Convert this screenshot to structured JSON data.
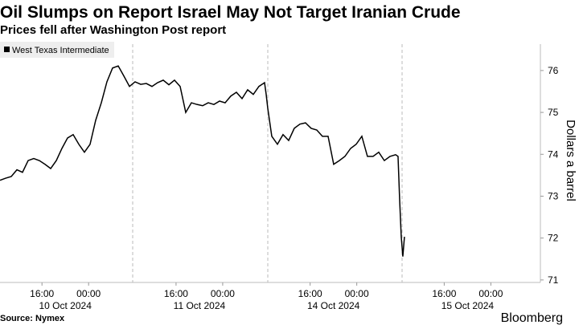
{
  "chart_data": {
    "type": "line",
    "title": "Oil Slumps on Report Israel May Not Target Iranian Crude",
    "subtitle": "Prices fell after Washington Post report",
    "y_label": "Dollars a barrel",
    "source": "Source: Nymex",
    "brand": "Bloomberg",
    "legend_position": "upper left",
    "date_labels": [
      "10 Oct 2024",
      "11 Oct 2024",
      "14 Oct 2024",
      "15 Oct 2024"
    ],
    "xlim": [
      0,
      92.7
    ],
    "xticks": [
      {
        "value": 7.2,
        "label": "16:00"
      },
      {
        "value": 15.2,
        "label": "00:00"
      },
      {
        "value": 30.2,
        "label": "16:00"
      },
      {
        "value": 38.2,
        "label": "00:00"
      },
      {
        "value": 53.2,
        "label": "16:00"
      },
      {
        "value": 61.2,
        "label": "00:00"
      },
      {
        "value": 76.2,
        "label": "16:00"
      },
      {
        "value": 84.2,
        "label": "00:00"
      }
    ],
    "ylim": [
      70.94,
      76.63
    ],
    "yticks": [
      71,
      72,
      73,
      74,
      75,
      76
    ],
    "x": [
      0,
      0.97,
      1.93,
      2.9,
      3.86,
      4.83,
      5.79,
      6.76,
      7.72,
      8.69,
      9.66,
      10.62,
      11.59,
      12.55,
      13.52,
      14.48,
      15.45,
      16.41,
      17.38,
      18.34,
      19.31,
      20.28,
      21.24,
      22.21,
      23.17,
      24.14,
      25.1,
      26.07,
      27.03,
      28,
      28.97,
      29.93,
      30.9,
      31.86,
      32.83,
      33.79,
      34.76,
      35.72,
      36.69,
      37.66,
      38.62,
      39.59,
      40.55,
      41.52,
      42.48,
      43.45,
      44.41,
      45.38,
      45.66,
      45.93,
      46.62,
      47.59,
      48.55,
      49.52,
      50.48,
      51.45,
      52.41,
      53.38,
      54.34,
      55.31,
      56.28,
      57.24,
      58.21,
      59.17,
      60.14,
      61.1,
      62.07,
      63.03,
      64,
      64.97,
      65.93,
      66.9,
      67.86,
      68.28,
      68.55,
      68.83,
      69.1,
      69.38
    ],
    "series": [
      {
        "name": "West Texas Intermediate",
        "color": "#000000",
        "values": [
          73.38,
          73.43,
          73.47,
          73.63,
          73.57,
          73.85,
          73.9,
          73.85,
          73.76,
          73.66,
          73.85,
          74.14,
          74.39,
          74.47,
          74.24,
          74.05,
          74.24,
          74.81,
          75.23,
          75.73,
          76.06,
          76.11,
          75.87,
          75.62,
          75.73,
          75.67,
          75.69,
          75.62,
          75.71,
          75.77,
          75.66,
          75.77,
          75.62,
          75.0,
          75.23,
          75.19,
          75.16,
          75.23,
          75.19,
          75.27,
          75.23,
          75.39,
          75.48,
          75.33,
          75.54,
          75.43,
          75.62,
          75.71,
          75.43,
          75.1,
          74.43,
          74.24,
          74.47,
          74.33,
          74.62,
          74.72,
          74.75,
          74.62,
          74.58,
          74.43,
          74.43,
          73.76,
          73.85,
          73.95,
          74.14,
          74.24,
          74.43,
          73.95,
          73.95,
          74.05,
          73.85,
          73.95,
          73.99,
          73.95,
          72.93,
          72.03,
          71.56,
          72.03
        ]
      }
    ]
  }
}
